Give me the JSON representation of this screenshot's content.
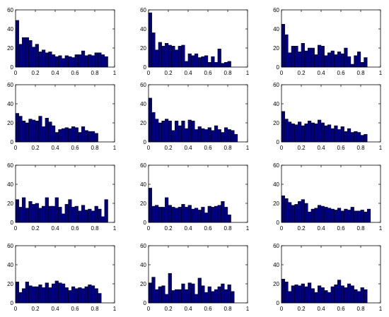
{
  "chart_data": [
    {
      "type": "bar",
      "xlim": [
        0,
        1
      ],
      "ylim": [
        0,
        60
      ],
      "xticks": [
        "0",
        "0.2",
        "0.4",
        "0.6",
        "0.8",
        "1"
      ],
      "yticks": [
        "0",
        "20",
        "40",
        "60"
      ],
      "bin_width": 0.0333,
      "values": [
        49,
        24,
        31,
        31,
        28,
        21,
        24,
        16,
        18,
        15,
        16,
        13,
        11,
        12,
        9,
        12,
        11,
        10,
        13,
        13,
        17,
        12,
        13,
        12,
        15,
        15,
        13,
        11
      ]
    },
    {
      "type": "bar",
      "xlim": [
        0,
        1
      ],
      "ylim": [
        0,
        60
      ],
      "xticks": [
        "0",
        "0.2",
        "0.4",
        "0.6",
        "0.8",
        "1"
      ],
      "yticks": [
        "0",
        "20",
        "40",
        "60"
      ],
      "bin_width": 0.0333,
      "values": [
        57,
        36,
        18,
        26,
        22,
        25,
        23,
        22,
        18,
        22,
        23,
        6,
        14,
        12,
        14,
        10,
        11,
        12,
        5,
        11,
        5,
        19,
        4,
        5,
        6
      ]
    },
    {
      "type": "bar",
      "xlim": [
        0,
        1
      ],
      "ylim": [
        0,
        60
      ],
      "xticks": [
        "0",
        "0.2",
        "0.4",
        "0.6",
        "0.8",
        "1"
      ],
      "yticks": [
        "0",
        "20",
        "40",
        "60"
      ],
      "bin_width": 0.0333,
      "values": [
        45,
        34,
        15,
        22,
        22,
        16,
        25,
        17,
        20,
        20,
        13,
        23,
        22,
        12,
        15,
        17,
        13,
        16,
        14,
        20,
        11,
        3,
        12,
        16,
        5,
        10
      ]
    },
    {
      "type": "bar",
      "xlim": [
        0,
        1
      ],
      "ylim": [
        0,
        60
      ],
      "xticks": [
        "0",
        "0.2",
        "0.4",
        "0.6",
        "0.8",
        "1"
      ],
      "yticks": [
        "0",
        "20",
        "40",
        "60"
      ],
      "bin_width": 0.0333,
      "values": [
        30,
        27,
        22,
        20,
        24,
        23,
        22,
        27,
        16,
        25,
        21,
        17,
        10,
        13,
        14,
        15,
        14,
        16,
        15,
        10,
        16,
        12,
        11,
        11,
        9
      ]
    },
    {
      "type": "bar",
      "xlim": [
        0,
        1
      ],
      "ylim": [
        0,
        60
      ],
      "xticks": [
        "0",
        "0.2",
        "0.4",
        "0.6",
        "0.8",
        "1"
      ],
      "yticks": [
        "0",
        "20",
        "40",
        "60"
      ],
      "bin_width": 0.0333,
      "values": [
        46,
        31,
        24,
        20,
        22,
        24,
        22,
        12,
        22,
        17,
        22,
        14,
        23,
        22,
        13,
        16,
        14,
        13,
        15,
        12,
        17,
        13,
        10,
        15,
        13,
        12,
        8
      ]
    },
    {
      "type": "bar",
      "xlim": [
        0,
        1
      ],
      "ylim": [
        0,
        60
      ],
      "xticks": [
        "0",
        "0.2",
        "0.4",
        "0.6",
        "0.8",
        "1"
      ],
      "yticks": [
        "0",
        "20",
        "40",
        "60"
      ],
      "bin_width": 0.0333,
      "values": [
        32,
        24,
        21,
        19,
        18,
        21,
        17,
        19,
        22,
        20,
        19,
        23,
        20,
        17,
        18,
        14,
        17,
        13,
        16,
        11,
        14,
        10,
        11,
        10,
        7,
        8
      ]
    },
    {
      "type": "bar",
      "xlim": [
        0,
        1
      ],
      "ylim": [
        0,
        60
      ],
      "xticks": [
        "0",
        "0.2",
        "0.4",
        "0.6",
        "0.8",
        "1"
      ],
      "yticks": [
        "0",
        "20",
        "40",
        "60"
      ],
      "bin_width": 0.0333,
      "values": [
        24,
        16,
        26,
        15,
        22,
        19,
        20,
        15,
        17,
        26,
        17,
        17,
        26,
        16,
        9,
        19,
        24,
        16,
        17,
        12,
        18,
        13,
        14,
        12,
        17,
        14,
        6,
        24
      ]
    },
    {
      "type": "bar",
      "xlim": [
        0,
        1
      ],
      "ylim": [
        0,
        60
      ],
      "xticks": [
        "0",
        "0.2",
        "0.4",
        "0.6",
        "0.8",
        "1"
      ],
      "yticks": [
        "0",
        "20",
        "40",
        "60"
      ],
      "bin_width": 0.0333,
      "values": [
        36,
        17,
        18,
        16,
        16,
        26,
        18,
        16,
        15,
        16,
        19,
        16,
        18,
        14,
        15,
        13,
        16,
        10,
        17,
        16,
        17,
        18,
        22,
        16,
        8
      ]
    },
    {
      "type": "bar",
      "xlim": [
        0,
        1
      ],
      "ylim": [
        0,
        60
      ],
      "xticks": [
        "0",
        "0.2",
        "0.4",
        "0.6",
        "0.8",
        "1"
      ],
      "yticks": [
        "0",
        "20",
        "40",
        "60"
      ],
      "bin_width": 0.0333,
      "values": [
        28,
        25,
        21,
        18,
        19,
        22,
        24,
        20,
        11,
        14,
        15,
        18,
        17,
        16,
        15,
        14,
        13,
        15,
        12,
        14,
        13,
        16,
        12,
        12,
        13,
        11,
        14
      ]
    },
    {
      "type": "bar",
      "xlim": [
        0,
        1
      ],
      "ylim": [
        0,
        60
      ],
      "xticks": [
        "0",
        "0.2",
        "0.4",
        "0.6",
        "0.8",
        "1"
      ],
      "yticks": [
        "0",
        "20",
        "40",
        "60"
      ],
      "bin_width": 0.0333,
      "values": [
        22,
        11,
        15,
        22,
        18,
        17,
        17,
        19,
        16,
        21,
        16,
        20,
        23,
        21,
        20,
        16,
        13,
        17,
        15,
        16,
        15,
        17,
        19,
        18,
        15,
        10
      ]
    },
    {
      "type": "bar",
      "xlim": [
        0,
        1
      ],
      "ylim": [
        0,
        60
      ],
      "xticks": [
        "0",
        "0.2",
        "0.4",
        "0.6",
        "0.8",
        "1"
      ],
      "yticks": [
        "0",
        "20",
        "40",
        "60"
      ],
      "bin_width": 0.0333,
      "values": [
        21,
        27,
        14,
        17,
        18,
        9,
        31,
        13,
        14,
        14,
        20,
        14,
        21,
        20,
        9,
        26,
        18,
        11,
        17,
        12,
        14,
        17,
        20,
        14,
        19,
        12
      ]
    },
    {
      "type": "bar",
      "xlim": [
        0,
        1
      ],
      "ylim": [
        0,
        60
      ],
      "xticks": [
        "0",
        "0.2",
        "0.4",
        "0.6",
        "0.8",
        "1"
      ],
      "yticks": [
        "0",
        "20",
        "40",
        "60"
      ],
      "bin_width": 0.0333,
      "values": [
        25,
        22,
        12,
        18,
        19,
        18,
        20,
        17,
        21,
        15,
        11,
        18,
        16,
        13,
        11,
        17,
        19,
        24,
        18,
        16,
        20,
        18,
        14,
        12,
        16,
        14
      ]
    }
  ]
}
